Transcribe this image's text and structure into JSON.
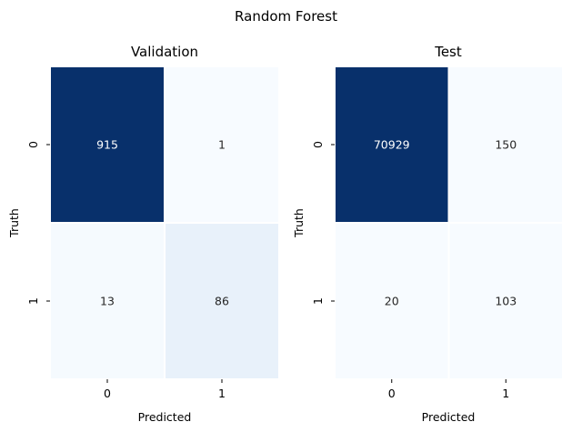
{
  "figure_title": "Random Forest",
  "colors": {
    "cmap_low": "#f7fbff",
    "cmap_mid": "#c6dbef",
    "cmap_high": "#08306b",
    "text_dark": "#262626",
    "text_light": "#ffffff",
    "cell_border": "#ffffff"
  },
  "chart_data": [
    {
      "type": "heatmap",
      "title": "Validation",
      "xlabel": "Predicted",
      "ylabel": "Truth",
      "x_ticks": [
        "0",
        "1"
      ],
      "y_ticks": [
        "0",
        "1"
      ],
      "values": [
        [
          915,
          1
        ],
        [
          13,
          86
        ]
      ],
      "cbar": false
    },
    {
      "type": "heatmap",
      "title": "Test",
      "xlabel": "Predicted",
      "ylabel": "Truth",
      "x_ticks": [
        "0",
        "1"
      ],
      "y_ticks": [
        "0",
        "1"
      ],
      "values": [
        [
          70929,
          150
        ],
        [
          20,
          103
        ]
      ],
      "cbar": false
    }
  ]
}
